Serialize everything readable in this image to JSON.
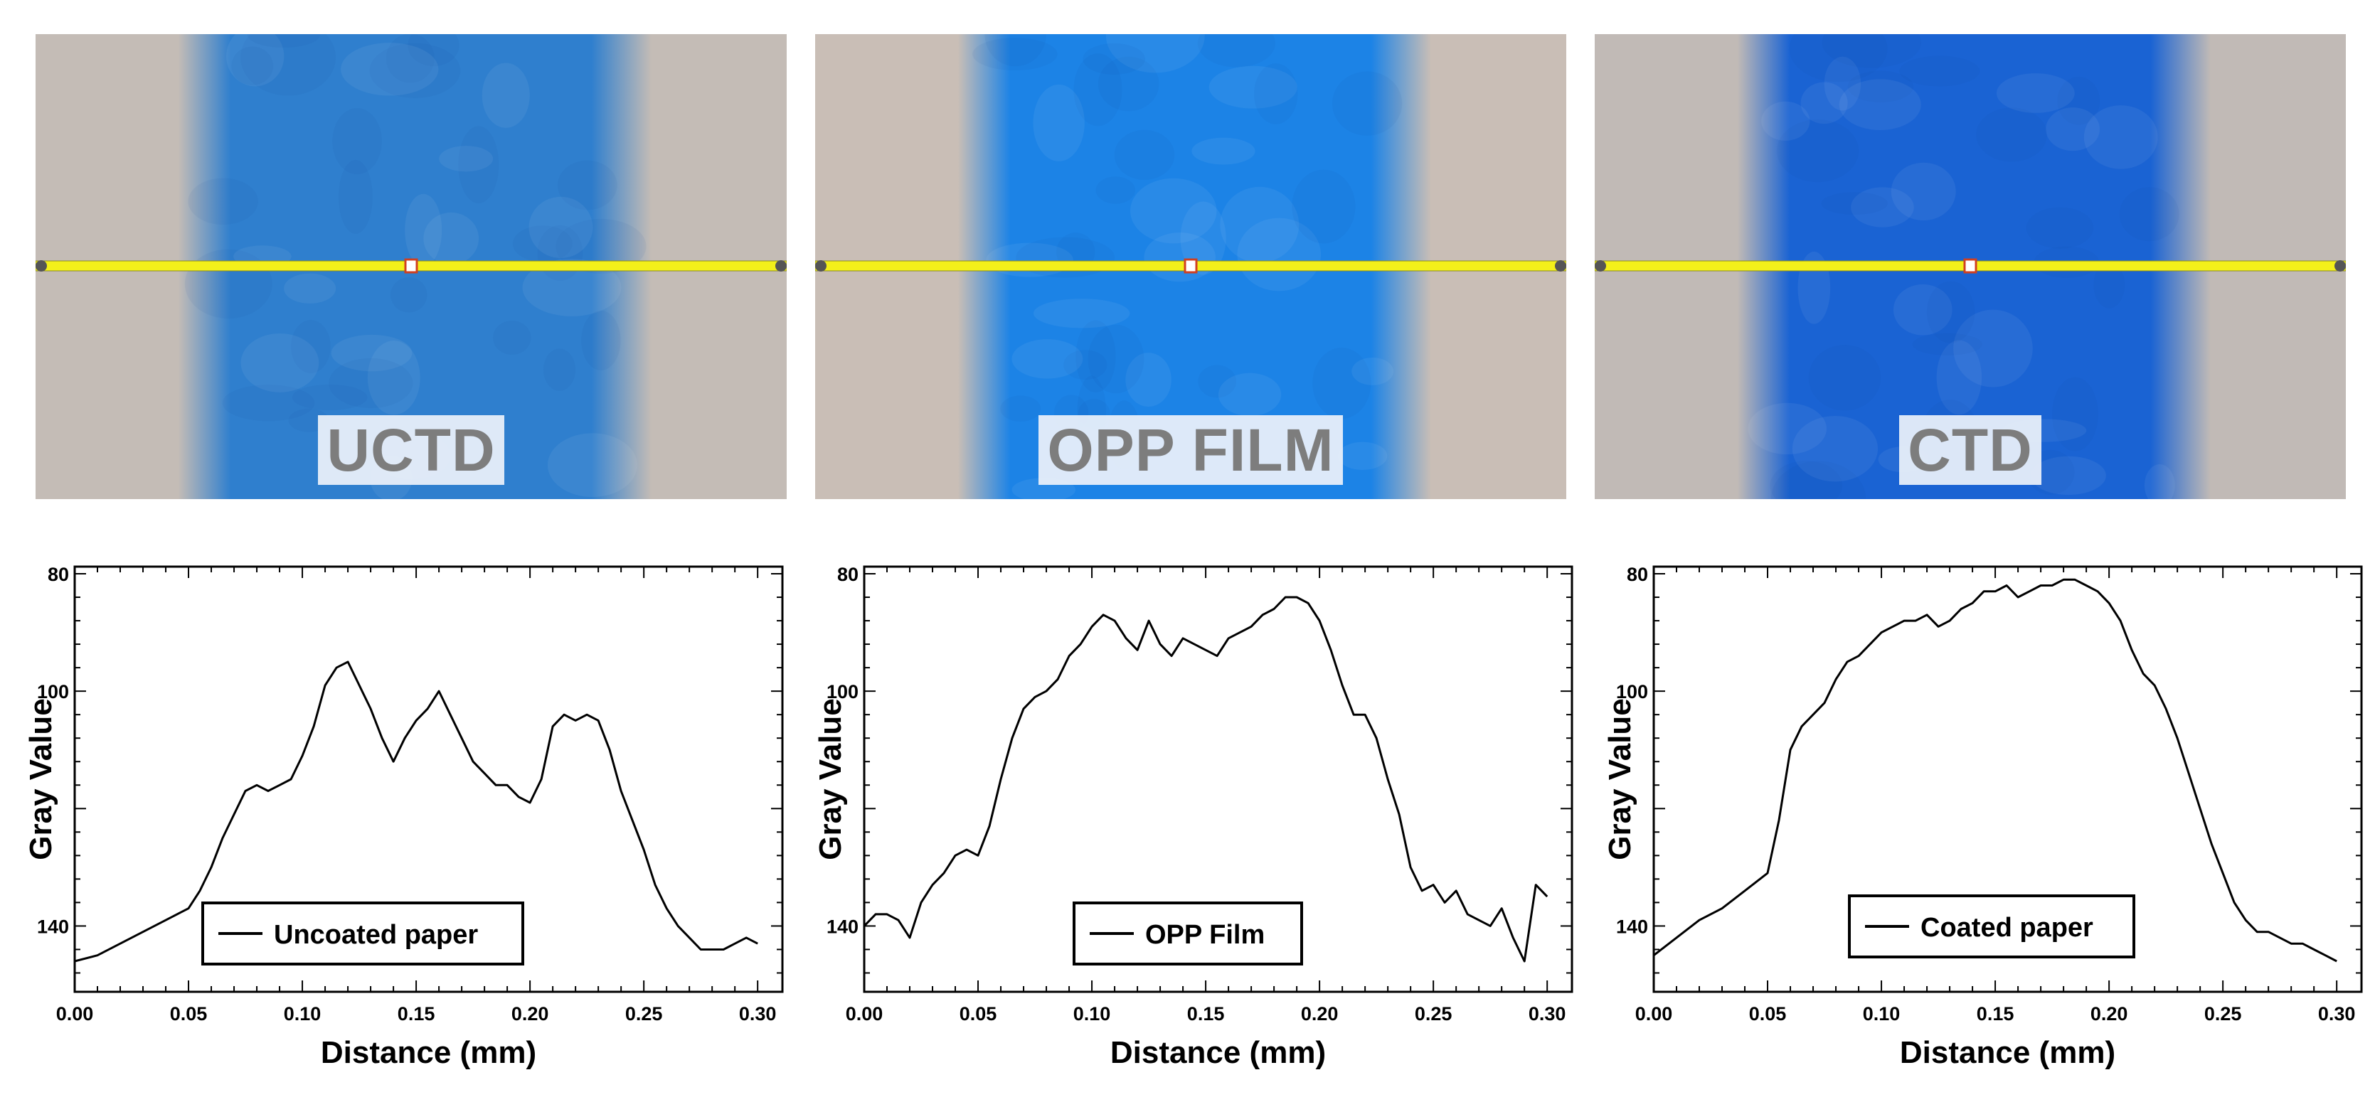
{
  "photos": [
    {
      "label": "UCTD",
      "colors": {
        "paper": "#c4bcb6",
        "ink": "#2f7fce",
        "line": "#f3f01a"
      }
    },
    {
      "label": "OPP FILM",
      "colors": {
        "paper": "#c9beb6",
        "ink": "#1c83e6",
        "line": "#f3f01a"
      }
    },
    {
      "label": "CTD",
      "colors": {
        "paper": "#c1bab6",
        "ink": "#1a63d3",
        "line": "#f3f01a"
      }
    }
  ],
  "chart_data": [
    {
      "type": "line",
      "xlabel": "Distance (mm)",
      "ylabel": "Gray Value",
      "xlim": [
        0,
        0.3
      ],
      "ylim": [
        80,
        150
      ],
      "y_inverted": true,
      "x_ticks": [
        "0.00",
        "0.05",
        "0.10",
        "0.15",
        "0.20",
        "0.25",
        "0.30"
      ],
      "y_ticks": [
        "80",
        "100",
        "",
        "140"
      ],
      "legend": {
        "label": "Uncoated paper",
        "position": "bottom-center"
      },
      "series": [
        {
          "name": "Uncoated paper",
          "x": [
            0.0,
            0.01,
            0.02,
            0.03,
            0.04,
            0.05,
            0.055,
            0.06,
            0.065,
            0.07,
            0.075,
            0.08,
            0.085,
            0.09,
            0.095,
            0.1,
            0.105,
            0.11,
            0.115,
            0.12,
            0.125,
            0.13,
            0.135,
            0.14,
            0.145,
            0.15,
            0.155,
            0.16,
            0.165,
            0.17,
            0.175,
            0.18,
            0.185,
            0.19,
            0.195,
            0.2,
            0.205,
            0.21,
            0.215,
            0.22,
            0.225,
            0.23,
            0.235,
            0.24,
            0.245,
            0.25,
            0.255,
            0.26,
            0.265,
            0.27,
            0.275,
            0.28,
            0.285,
            0.29,
            0.295,
            0.3
          ],
          "y": [
            146,
            145,
            143,
            141,
            139,
            137,
            134,
            130,
            125,
            121,
            117,
            116,
            117,
            116,
            115,
            111,
            106,
            99,
            96,
            95,
            99,
            103,
            108,
            112,
            108,
            105,
            103,
            100,
            104,
            108,
            112,
            114,
            116,
            116,
            118,
            119,
            115,
            106,
            104,
            105,
            104,
            105,
            110,
            117,
            122,
            127,
            133,
            137,
            140,
            142,
            144,
            144,
            144,
            143,
            142,
            143
          ]
        }
      ]
    },
    {
      "type": "line",
      "xlabel": "Distance (mm)",
      "ylabel": "Gray Value",
      "xlim": [
        0,
        0.3
      ],
      "ylim": [
        80,
        150
      ],
      "y_inverted": true,
      "x_ticks": [
        "0.00",
        "0.05",
        "0.10",
        "0.15",
        "0.20",
        "0.25",
        "0.30"
      ],
      "y_ticks": [
        "80",
        "100",
        "",
        "140"
      ],
      "legend": {
        "label": "OPP Film",
        "position": "bottom-center"
      },
      "series": [
        {
          "name": "OPP Film",
          "x": [
            0.0,
            0.005,
            0.01,
            0.015,
            0.02,
            0.025,
            0.03,
            0.035,
            0.04,
            0.045,
            0.05,
            0.055,
            0.06,
            0.065,
            0.07,
            0.075,
            0.08,
            0.085,
            0.09,
            0.095,
            0.1,
            0.105,
            0.11,
            0.115,
            0.12,
            0.125,
            0.13,
            0.135,
            0.14,
            0.145,
            0.15,
            0.155,
            0.16,
            0.165,
            0.17,
            0.175,
            0.18,
            0.185,
            0.19,
            0.195,
            0.2,
            0.205,
            0.21,
            0.215,
            0.22,
            0.225,
            0.23,
            0.235,
            0.24,
            0.245,
            0.25,
            0.255,
            0.26,
            0.265,
            0.27,
            0.275,
            0.28,
            0.285,
            0.29,
            0.295,
            0.3
          ],
          "y": [
            140,
            138,
            138,
            139,
            142,
            136,
            133,
            131,
            128,
            127,
            128,
            123,
            115,
            108,
            103,
            101,
            100,
            98,
            94,
            92,
            89,
            87,
            88,
            91,
            93,
            88,
            92,
            94,
            91,
            92,
            93,
            94,
            91,
            90,
            89,
            87,
            86,
            84,
            84,
            85,
            88,
            93,
            99,
            104,
            104,
            108,
            115,
            121,
            130,
            134,
            133,
            136,
            134,
            138,
            139,
            140,
            137,
            142,
            146,
            133,
            135
          ]
        }
      ]
    },
    {
      "type": "line",
      "xlabel": "Distance (mm)",
      "ylabel": "Gray Value",
      "xlim": [
        0,
        0.3
      ],
      "ylim": [
        80,
        150
      ],
      "y_inverted": true,
      "x_ticks": [
        "0.00",
        "0.05",
        "0.10",
        "0.15",
        "0.20",
        "0.25",
        "0.30"
      ],
      "y_ticks": [
        "80",
        "100",
        "",
        "140"
      ],
      "legend": {
        "label": "Coated paper",
        "position": "bottom-center"
      },
      "series": [
        {
          "name": "Coated paper",
          "x": [
            0.0,
            0.01,
            0.02,
            0.03,
            0.04,
            0.05,
            0.055,
            0.06,
            0.065,
            0.07,
            0.075,
            0.08,
            0.085,
            0.09,
            0.095,
            0.1,
            0.105,
            0.11,
            0.115,
            0.12,
            0.125,
            0.13,
            0.135,
            0.14,
            0.145,
            0.15,
            0.155,
            0.16,
            0.165,
            0.17,
            0.175,
            0.18,
            0.185,
            0.19,
            0.195,
            0.2,
            0.205,
            0.21,
            0.215,
            0.22,
            0.225,
            0.23,
            0.235,
            0.24,
            0.245,
            0.25,
            0.255,
            0.26,
            0.265,
            0.27,
            0.275,
            0.28,
            0.285,
            0.29,
            0.295,
            0.3
          ],
          "y": [
            145,
            142,
            139,
            137,
            134,
            131,
            122,
            110,
            106,
            104,
            102,
            98,
            95,
            94,
            92,
            90,
            89,
            88,
            88,
            87,
            89,
            88,
            86,
            85,
            83,
            83,
            82,
            84,
            83,
            82,
            82,
            81,
            81,
            82,
            83,
            85,
            88,
            93,
            97,
            99,
            103,
            108,
            114,
            120,
            126,
            131,
            136,
            139,
            141,
            141,
            142,
            143,
            143,
            144,
            145,
            146
          ]
        }
      ]
    }
  ]
}
